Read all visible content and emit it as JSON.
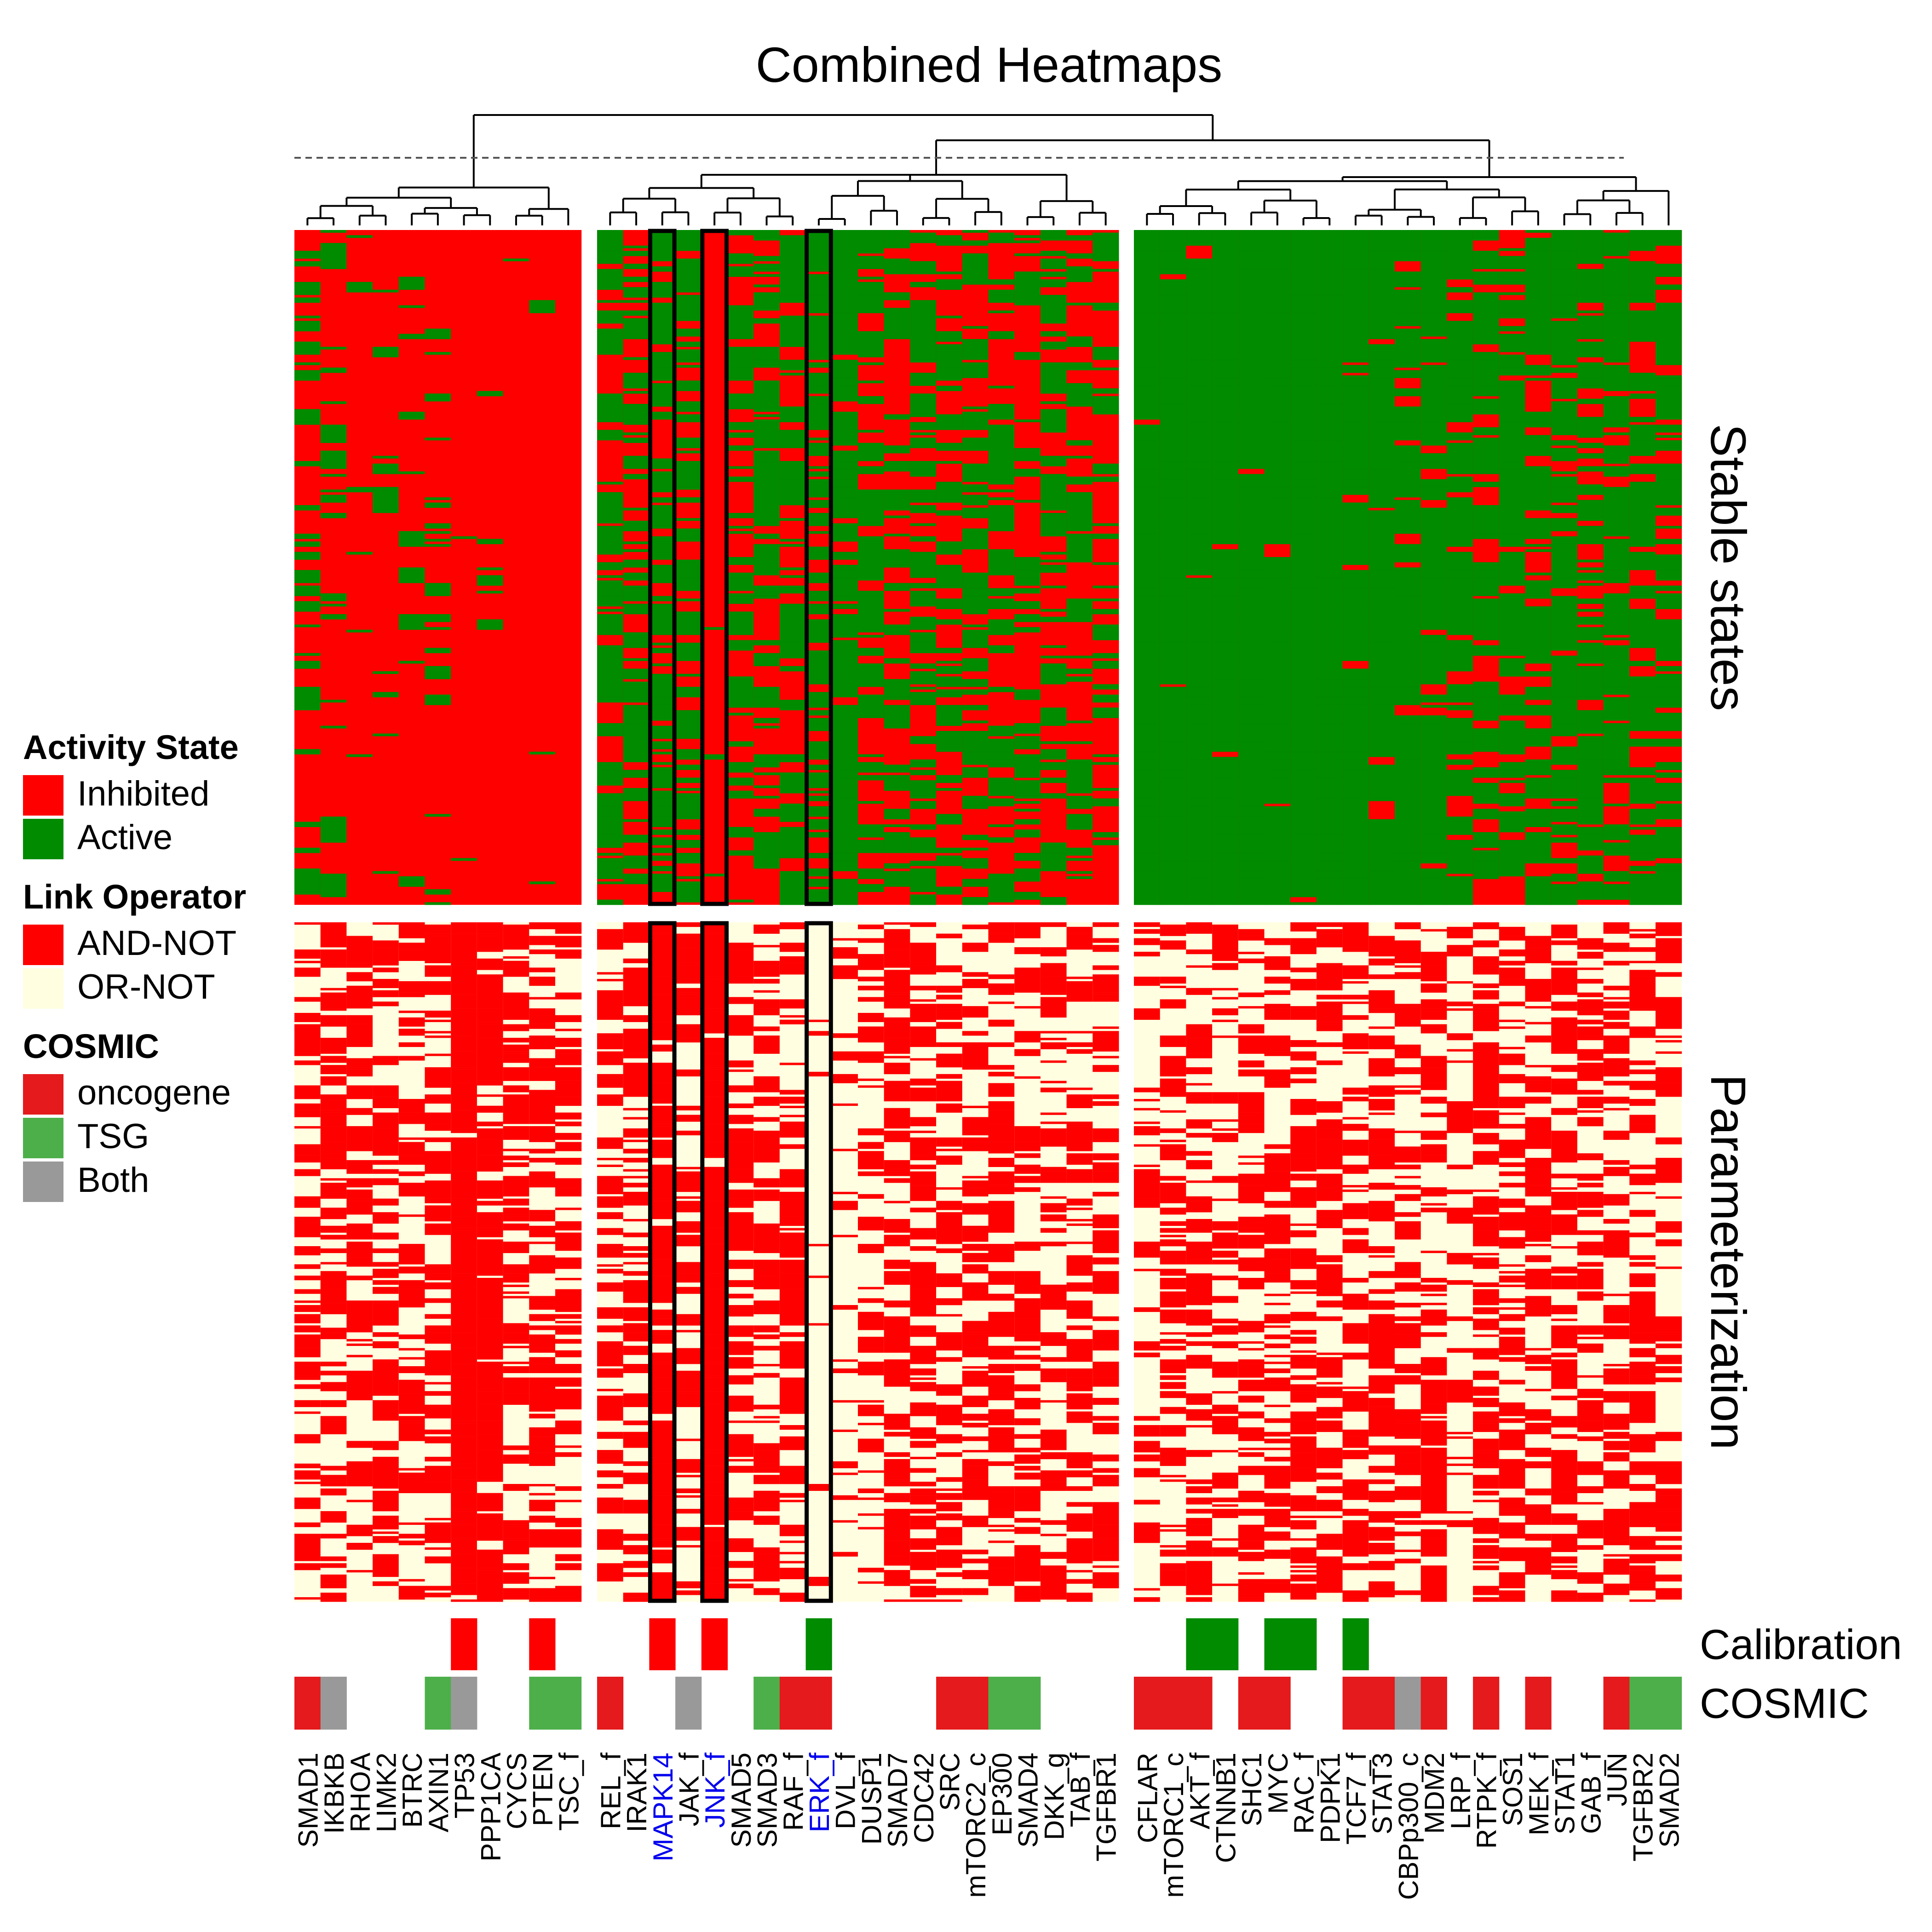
{
  "chart_data": {
    "type": "heatmap",
    "title": "Combined Heatmaps",
    "groups": [
      {
        "columns": [
          "SMAD1",
          "IKBKB",
          "RHOA",
          "LIMK2",
          "BTRC",
          "AXIN1",
          "TP53",
          "PPP1CA",
          "CYCS",
          "PTEN",
          "TSC_f"
        ]
      },
      {
        "columns": [
          "REL_f",
          "IRAK1",
          "MAPK14",
          "JAK_f",
          "JNK_f",
          "SMAD5",
          "SMAD3",
          "RAF_f",
          "ERK_f",
          "DVL_f",
          "DUSP1",
          "SMAD7",
          "CDC42",
          "SRC",
          "mTORC2_c",
          "EP300",
          "SMAD4",
          "DKK_g",
          "TAB_f",
          "TGFBR1"
        ]
      },
      {
        "columns": [
          "CFLAR",
          "mTORC1_c",
          "AKT_f",
          "CTNNB1",
          "SHC1",
          "MYC",
          "RAC_f",
          "PDPK1",
          "TCF7_f",
          "STAT3",
          "CBPp300_c",
          "MDM2",
          "LRP_f",
          "RTPK_f",
          "SOS1",
          "MEK_f",
          "STAT1",
          "GAB_f",
          "JUN",
          "TGFBR2",
          "SMAD2"
        ]
      }
    ],
    "highlighted_columns": [
      "MAPK14",
      "JNK_f",
      "ERK_f"
    ],
    "highlight_color": "#0000ee",
    "row_panels": [
      "Stable states",
      "Parameterization"
    ],
    "annotation_rows": [
      "Calibration",
      "COSMIC"
    ],
    "calibration": {
      "TP53": "Inhibited",
      "PTEN": "Inhibited",
      "MAPK14": "Inhibited",
      "JNK_f": "Inhibited",
      "ERK_f": "Active",
      "AKT_f": "Active",
      "CTNNB1": "Active",
      "MYC": "Active",
      "RAC_f": "Active",
      "TCF7_f": "Active"
    },
    "cosmic": {
      "SMAD1": "oncogene",
      "IKBKB": "Both",
      "AXIN1": "TSG",
      "TP53": "Both",
      "PTEN": "TSG",
      "TSC_f": "TSG",
      "REL_f": "oncogene",
      "JAK_f": "Both",
      "SMAD3": "TSG",
      "RAF_f": "oncogene",
      "ERK_f": "oncogene",
      "SRC": "oncogene",
      "mTORC2_c": "oncogene",
      "EP300": "TSG",
      "SMAD4": "TSG",
      "CFLAR": "oncogene",
      "mTORC1_c": "oncogene",
      "AKT_f": "oncogene",
      "SHC1": "oncogene",
      "MYC": "oncogene",
      "TCF7_f": "oncogene",
      "STAT3": "oncogene",
      "CBPp300_c": "Both",
      "MDM2": "oncogene",
      "RTPK_f": "oncogene",
      "MEK_f": "oncogene",
      "JUN": "oncogene",
      "TGFBR2": "TSG",
      "SMAD2": "TSG"
    },
    "legends": [
      {
        "title": "Activity State",
        "entries": [
          {
            "label": "Inhibited",
            "color": "#ff0000"
          },
          {
            "label": "Active",
            "color": "#008b00"
          }
        ]
      },
      {
        "title": "Link Operator",
        "entries": [
          {
            "label": "AND-NOT",
            "color": "#ff0000"
          },
          {
            "label": "OR-NOT",
            "color": "#fffee0"
          }
        ]
      },
      {
        "title": "COSMIC",
        "entries": [
          {
            "label": "oncogene",
            "color": "#e41a1c"
          },
          {
            "label": "TSG",
            "color": "#4daf4a"
          },
          {
            "label": "Both",
            "color": "#999999"
          }
        ]
      }
    ],
    "colors": {
      "inhibited": "#ff0000",
      "active": "#008b00",
      "and_not": "#ff0000",
      "or_not": "#fffee0",
      "oncogene": "#e41a1c",
      "tsg": "#4daf4a",
      "both": "#999999",
      "cal_inhibited": "#ff0000",
      "cal_active": "#008b00"
    },
    "active_fraction_stable": {
      "SMAD1": 0.35,
      "IKBKB": 0.2,
      "RHOA": 0.05,
      "LIMK2": 0.04,
      "BTRC": 0.15,
      "AXIN1": 0.1,
      "TP53": 0.02,
      "PPP1CA": 0.02,
      "CYCS": 0.02,
      "PTEN": 0.02,
      "TSC_f": 0.01,
      "REL_f": 0.6,
      "IRAK1": 0.5,
      "MAPK14": 0.65,
      "JAK_f": 0.5,
      "JNK_f": 0.05,
      "SMAD5": 0.5,
      "SMAD3": 0.5,
      "RAF_f": 0.6,
      "ERK_f": 0.6,
      "DVL_f": 0.9,
      "DUSP1": 0.55,
      "SMAD7": 0.4,
      "CDC42": 0.6,
      "SRC": 0.5,
      "mTORC2_c": 0.5,
      "EP300": 0.45,
      "SMAD4": 0.45,
      "DKK_g": 0.5,
      "TAB_f": 0.45,
      "TGFBR1": 0.3,
      "CFLAR": 0.99,
      "mTORC1_c": 0.99,
      "AKT_f": 0.99,
      "CTNNB1": 0.99,
      "SHC1": 0.99,
      "MYC": 0.99,
      "RAC_f": 0.98,
      "PDPK1": 0.97,
      "TCF7_f": 0.96,
      "STAT3": 0.95,
      "CBPp300_c": 0.92,
      "MDM2": 0.9,
      "LRP_f": 0.85,
      "RTPK_f": 0.75,
      "SOS1": 0.7,
      "MEK_f": 0.75,
      "STAT1": 0.7,
      "GAB_f": 0.75,
      "JUN": 0.8,
      "TGFBR2": 0.7,
      "SMAD2": 0.75
    },
    "and_not_fraction_param": {
      "SMAD1": 0.6,
      "IKBKB": 0.6,
      "RHOA": 0.55,
      "LIMK2": 0.55,
      "BTRC": 0.55,
      "AXIN1": 0.55,
      "TP53": 0.97,
      "PPP1CA": 0.9,
      "CYCS": 0.7,
      "PTEN": 0.6,
      "TSC_f": 0.55,
      "REL_f": 0.55,
      "IRAK1": 0.55,
      "MAPK14": 0.85,
      "JAK_f": 0.5,
      "JNK_f": 0.97,
      "SMAD5": 0.55,
      "SMAD3": 0.55,
      "RAF_f": 0.55,
      "ERK_f": 0.08,
      "DVL_f": 0.2,
      "DUSP1": 0.35,
      "SMAD7": 0.75,
      "CDC42": 0.55,
      "SRC": 0.55,
      "mTORC2_c": 0.55,
      "EP300": 0.55,
      "SMAD4": 0.55,
      "DKK_g": 0.5,
      "TAB_f": 0.55,
      "TGFBR1": 0.55,
      "CFLAR": 0.25,
      "mTORC1_c": 0.55,
      "AKT_f": 0.55,
      "CTNNB1": 0.4,
      "SHC1": 0.55,
      "MYC": 0.55,
      "RAC_f": 0.55,
      "PDPK1": 0.55,
      "TCF7_f": 0.55,
      "STAT3": 0.55,
      "CBPp300_c": 0.5,
      "MDM2": 0.55,
      "LRP_f": 0.25,
      "RTPK_f": 0.55,
      "SOS1": 0.55,
      "MEK_f": 0.55,
      "STAT1": 0.55,
      "GAB_f": 0.55,
      "JUN": 0.55,
      "TGFBR2": 0.55,
      "SMAD2": 0.55
    }
  }
}
